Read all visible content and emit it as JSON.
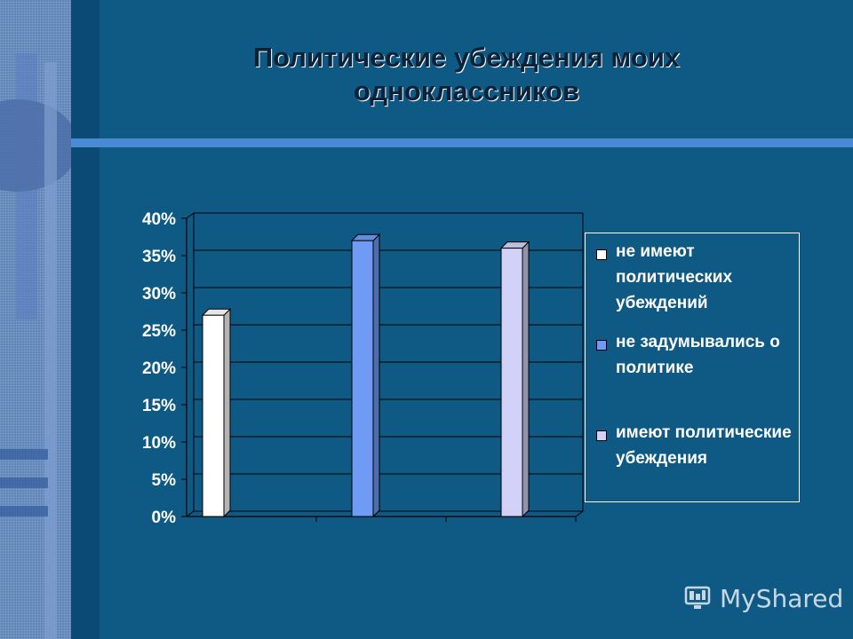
{
  "slide": {
    "title_line1": "Политические убеждения моих",
    "title_line2": "одноклассников"
  },
  "chart_data": {
    "type": "bar",
    "categories": [
      "не имеют политических убеждений",
      "не задумывались о политике",
      "имеют политические убеждения"
    ],
    "values": [
      27,
      37,
      36
    ],
    "colors": [
      "#ffffff",
      "#6f9bf5",
      "#d2d2f8"
    ],
    "yticks": [
      "0%",
      "5%",
      "10%",
      "15%",
      "20%",
      "25%",
      "30%",
      "35%",
      "40%"
    ],
    "ylim": [
      0,
      40
    ],
    "grid": true,
    "legend_position": "right",
    "legend": [
      "не имеют политических убеждений",
      "не задумывались о политике",
      "имеют политические убеждения"
    ]
  },
  "watermark": {
    "text": "MyShared",
    "icon": "monitor-icon"
  }
}
